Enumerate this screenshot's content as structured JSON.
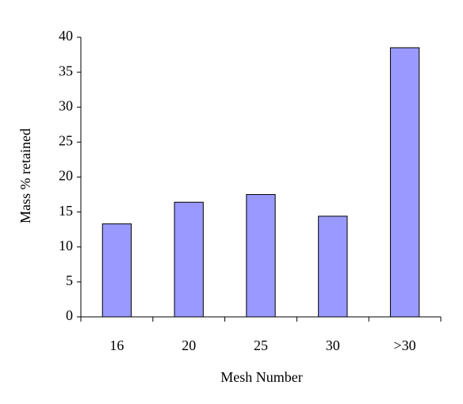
{
  "chart_data": {
    "type": "bar",
    "x_label": "Mesh Number",
    "y_label": "Mass % retained",
    "categories": [
      "16",
      "20",
      "25",
      "30",
      ">30"
    ],
    "values": [
      13.3,
      16.4,
      17.5,
      14.4,
      38.5
    ],
    "color": "#9999ff",
    "ylim": [
      0,
      40
    ],
    "yticks": [
      0,
      5,
      10,
      15,
      20,
      25,
      30,
      35,
      40
    ],
    "grid": false
  }
}
